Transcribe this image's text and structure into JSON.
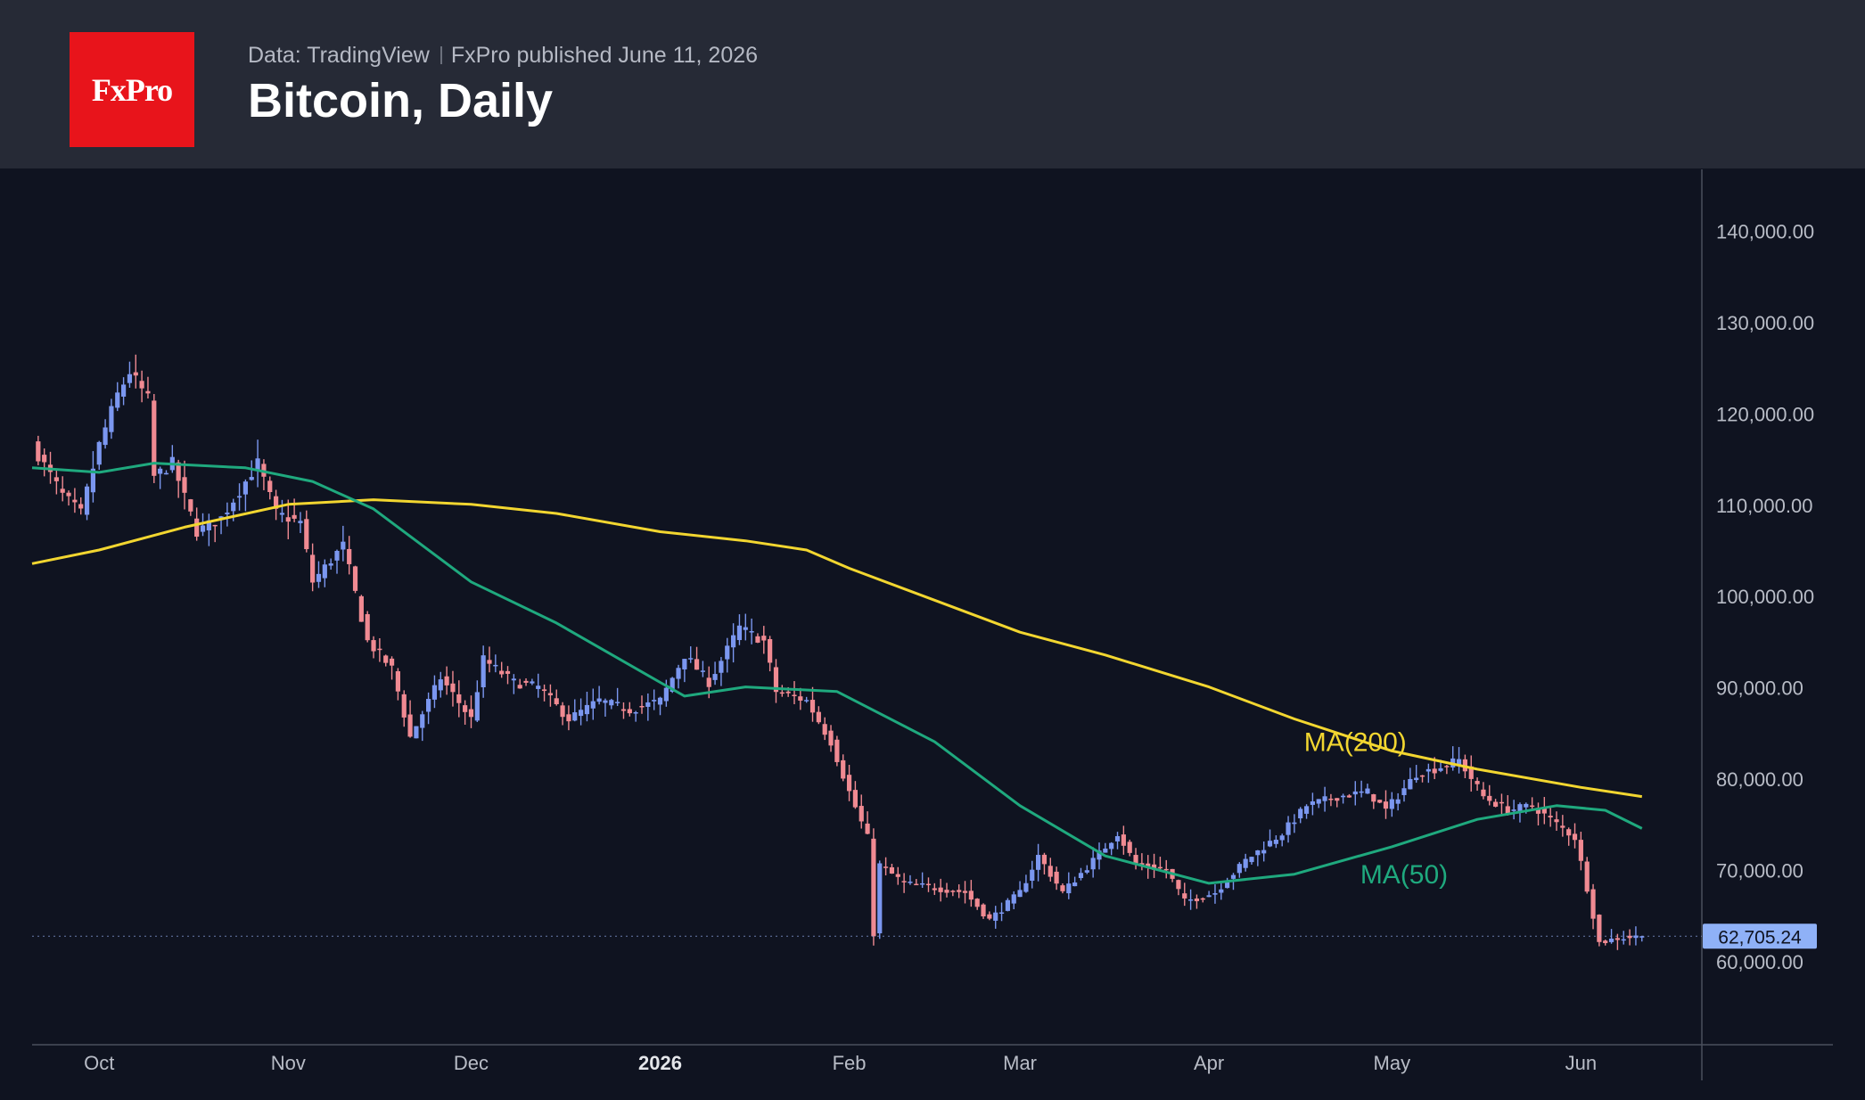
{
  "header": {
    "logo_text": "FxPro",
    "source": "Data: TradingView",
    "published": "FxPro published June 11, 2026",
    "title": "Bitcoin, Daily"
  },
  "colors": {
    "background": "#0f1320",
    "header_bg": "#262a36",
    "logo_bg": "#e8141b",
    "candle_up": "#7b97f0",
    "candle_down": "#f08a92",
    "ma200": "#f2d630",
    "ma50": "#1fa97e",
    "last_price_bg": "#8fb1f7"
  },
  "chart_data": {
    "type": "candlestick",
    "title": "Bitcoin, Daily",
    "x_ticks": [
      "Oct",
      "Nov",
      "Dec",
      "2026",
      "Feb",
      "Mar",
      "Apr",
      "May",
      "Jun"
    ],
    "y_ticks": [
      "140,000.00",
      "130,000.00",
      "120,000.00",
      "110,000.00",
      "100,000.00",
      "90,000.00",
      "80,000.00",
      "70,000.00",
      "60,000.00"
    ],
    "ylim": [
      50000,
      143000
    ],
    "last_price": 62705.24,
    "last_price_label": "62,705.24",
    "series_close": [
      {
        "date": "2025-09-20",
        "close": 116500
      },
      {
        "date": "2025-09-25",
        "close": 111000
      },
      {
        "date": "2025-09-28",
        "close": 109000
      },
      {
        "date": "2025-10-01",
        "close": 116500
      },
      {
        "date": "2025-10-04",
        "close": 122000
      },
      {
        "date": "2025-10-06",
        "close": 124500
      },
      {
        "date": "2025-10-09",
        "close": 121500
      },
      {
        "date": "2025-10-10",
        "close": 113000
      },
      {
        "date": "2025-10-13",
        "close": 114500
      },
      {
        "date": "2025-10-17",
        "close": 107000
      },
      {
        "date": "2025-10-21",
        "close": 108500
      },
      {
        "date": "2025-10-27",
        "close": 114500
      },
      {
        "date": "2025-10-30",
        "close": 109000
      },
      {
        "date": "2025-11-03",
        "close": 108000
      },
      {
        "date": "2025-11-05",
        "close": 101500
      },
      {
        "date": "2025-11-10",
        "close": 105500
      },
      {
        "date": "2025-11-14",
        "close": 95000
      },
      {
        "date": "2025-11-18",
        "close": 92000
      },
      {
        "date": "2025-11-21",
        "close": 84500
      },
      {
        "date": "2025-11-26",
        "close": 91000
      },
      {
        "date": "2025-12-01",
        "close": 86500
      },
      {
        "date": "2025-12-03",
        "close": 93000
      },
      {
        "date": "2025-12-08",
        "close": 90500
      },
      {
        "date": "2025-12-12",
        "close": 90000
      },
      {
        "date": "2025-12-17",
        "close": 86500
      },
      {
        "date": "2025-12-22",
        "close": 88500
      },
      {
        "date": "2025-12-27",
        "close": 87500
      },
      {
        "date": "2026-01-01",
        "close": 88500
      },
      {
        "date": "2026-01-05",
        "close": 93500
      },
      {
        "date": "2026-01-09",
        "close": 90500
      },
      {
        "date": "2026-01-14",
        "close": 96500
      },
      {
        "date": "2026-01-18",
        "close": 95000
      },
      {
        "date": "2026-01-20",
        "close": 89500
      },
      {
        "date": "2026-01-25",
        "close": 88500
      },
      {
        "date": "2026-01-29",
        "close": 84000
      },
      {
        "date": "2026-02-01",
        "close": 78500
      },
      {
        "date": "2026-02-04",
        "close": 73500
      },
      {
        "date": "2026-02-05",
        "close": 63000
      },
      {
        "date": "2026-02-06",
        "close": 70500
      },
      {
        "date": "2026-02-10",
        "close": 68500
      },
      {
        "date": "2026-02-15",
        "close": 68000
      },
      {
        "date": "2026-02-20",
        "close": 67500
      },
      {
        "date": "2026-02-24",
        "close": 64500
      },
      {
        "date": "2026-03-01",
        "close": 67500
      },
      {
        "date": "2026-03-04",
        "close": 71500
      },
      {
        "date": "2026-03-08",
        "close": 67500
      },
      {
        "date": "2026-03-13",
        "close": 71000
      },
      {
        "date": "2026-03-17",
        "close": 74000
      },
      {
        "date": "2026-03-20",
        "close": 70500
      },
      {
        "date": "2026-03-25",
        "close": 70000
      },
      {
        "date": "2026-03-28",
        "close": 66500
      },
      {
        "date": "2026-04-02",
        "close": 67500
      },
      {
        "date": "2026-04-07",
        "close": 71000
      },
      {
        "date": "2026-04-13",
        "close": 74000
      },
      {
        "date": "2026-04-17",
        "close": 77000
      },
      {
        "date": "2026-04-22",
        "close": 78000
      },
      {
        "date": "2026-04-27",
        "close": 78500
      },
      {
        "date": "2026-04-30",
        "close": 76500
      },
      {
        "date": "2026-05-05",
        "close": 80500
      },
      {
        "date": "2026-05-08",
        "close": 81000
      },
      {
        "date": "2026-05-12",
        "close": 82000
      },
      {
        "date": "2026-05-16",
        "close": 78000
      },
      {
        "date": "2026-05-20",
        "close": 76500
      },
      {
        "date": "2026-05-24",
        "close": 77000
      },
      {
        "date": "2026-05-27",
        "close": 75500
      },
      {
        "date": "2026-05-31",
        "close": 73500
      },
      {
        "date": "2026-06-02",
        "close": 68000
      },
      {
        "date": "2026-06-04",
        "close": 62000
      },
      {
        "date": "2026-06-07",
        "close": 62500
      },
      {
        "date": "2026-06-11",
        "close": 62705
      }
    ],
    "series": [
      {
        "name": "MA(200)",
        "values": [
          {
            "date": "2025-09-20",
            "value": 103500
          },
          {
            "date": "2025-10-01",
            "value": 105000
          },
          {
            "date": "2025-10-15",
            "value": 107500
          },
          {
            "date": "2025-11-01",
            "value": 110000
          },
          {
            "date": "2025-11-15",
            "value": 110500
          },
          {
            "date": "2025-12-01",
            "value": 110000
          },
          {
            "date": "2025-12-15",
            "value": 109000
          },
          {
            "date": "2026-01-01",
            "value": 107000
          },
          {
            "date": "2026-01-15",
            "value": 106000
          },
          {
            "date": "2026-01-25",
            "value": 105000
          },
          {
            "date": "2026-02-01",
            "value": 103000
          },
          {
            "date": "2026-02-15",
            "value": 99500
          },
          {
            "date": "2026-03-01",
            "value": 96000
          },
          {
            "date": "2026-03-15",
            "value": 93500
          },
          {
            "date": "2026-04-01",
            "value": 90000
          },
          {
            "date": "2026-04-15",
            "value": 86500
          },
          {
            "date": "2026-05-01",
            "value": 83000
          },
          {
            "date": "2026-05-15",
            "value": 81000
          },
          {
            "date": "2026-06-01",
            "value": 79000
          },
          {
            "date": "2026-06-11",
            "value": 78000
          }
        ]
      },
      {
        "name": "MA(50)",
        "values": [
          {
            "date": "2025-09-20",
            "value": 114000
          },
          {
            "date": "2025-10-01",
            "value": 113500
          },
          {
            "date": "2025-10-10",
            "value": 114500
          },
          {
            "date": "2025-10-25",
            "value": 114000
          },
          {
            "date": "2025-11-05",
            "value": 112500
          },
          {
            "date": "2025-11-15",
            "value": 109500
          },
          {
            "date": "2025-12-01",
            "value": 101500
          },
          {
            "date": "2025-12-15",
            "value": 97000
          },
          {
            "date": "2026-01-01",
            "value": 90500
          },
          {
            "date": "2026-01-05",
            "value": 89000
          },
          {
            "date": "2026-01-15",
            "value": 90000
          },
          {
            "date": "2026-01-30",
            "value": 89500
          },
          {
            "date": "2026-02-15",
            "value": 84000
          },
          {
            "date": "2026-03-01",
            "value": 77000
          },
          {
            "date": "2026-03-15",
            "value": 71500
          },
          {
            "date": "2026-04-01",
            "value": 68500
          },
          {
            "date": "2026-04-15",
            "value": 69500
          },
          {
            "date": "2026-05-01",
            "value": 72500
          },
          {
            "date": "2026-05-15",
            "value": 75500
          },
          {
            "date": "2026-05-28",
            "value": 77000
          },
          {
            "date": "2026-06-05",
            "value": 76500
          },
          {
            "date": "2026-06-11",
            "value": 74500
          }
        ]
      }
    ],
    "grid": false
  }
}
